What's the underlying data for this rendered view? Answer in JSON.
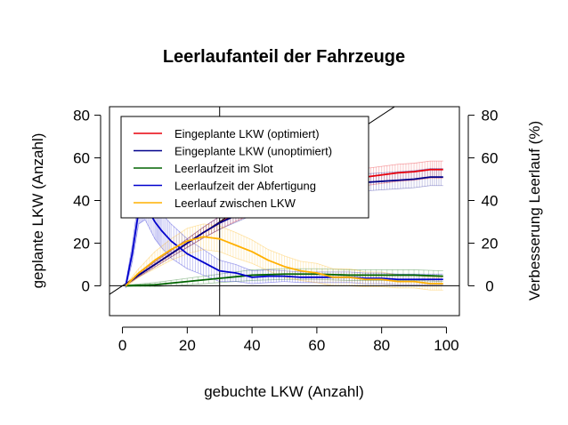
{
  "chart_data": {
    "type": "line",
    "title": "Leerlaufanteil der Fahrzeuge",
    "xlabel": "gebuchte LKW (Anzahl)",
    "ylabel": "geplante LKW (Anzahl)",
    "y2label": "Verbesserung Leerlauf (%)",
    "xlim": [
      -4,
      104
    ],
    "ylim": [
      -14,
      84
    ],
    "xticks": [
      0,
      20,
      40,
      60,
      80,
      100
    ],
    "yticks": [
      0,
      20,
      40,
      60,
      80
    ],
    "y2ticks": [
      0,
      20,
      40,
      60,
      80
    ],
    "legend_position": "top-left",
    "reference_lines": {
      "vertical_x": 30,
      "horizontal_y": 0,
      "diagonal": "y = x"
    },
    "series": [
      {
        "name": "Eingeplante LKW (optimiert)",
        "color": "#e8000b",
        "x": [
          1,
          5,
          10,
          15,
          20,
          25,
          30,
          35,
          40,
          45,
          50,
          55,
          60,
          65,
          70,
          75,
          80,
          85,
          90,
          95,
          99
        ],
        "y": [
          0.5,
          5,
          10,
          15,
          20,
          25,
          29.5,
          33.5,
          37,
          40,
          42.5,
          44.5,
          46,
          47.5,
          49.5,
          51,
          52,
          53,
          53.5,
          54.5,
          54.5
        ],
        "err": [
          0.3,
          0.8,
          1.2,
          1.5,
          2,
          2.5,
          3,
          3.2,
          3.5,
          3.7,
          3.8,
          3.9,
          4,
          4,
          4,
          4,
          4,
          4,
          4,
          4,
          4
        ]
      },
      {
        "name": "Eingeplante LKW (unoptimiert)",
        "color": "#00008b",
        "x": [
          1,
          5,
          10,
          15,
          20,
          25,
          30,
          35,
          40,
          45,
          50,
          55,
          60,
          65,
          70,
          75,
          80,
          85,
          90,
          95,
          99
        ],
        "y": [
          0.5,
          5,
          10,
          15,
          20,
          25,
          29.5,
          33,
          36.5,
          39,
          41.5,
          43.5,
          45,
          46,
          47.5,
          48.5,
          49,
          49.5,
          50,
          51,
          51
        ],
        "err": [
          0.3,
          0.8,
          1.2,
          1.5,
          2,
          2.5,
          3,
          3.2,
          3.5,
          3.7,
          3.8,
          3.9,
          4,
          4,
          4,
          4,
          4,
          4,
          4,
          4,
          4
        ]
      },
      {
        "name": "Leerlaufzeit im Slot",
        "color": "#006400",
        "x": [
          1,
          10,
          20,
          30,
          40,
          50,
          60,
          70,
          80,
          90,
          99
        ],
        "y": [
          0,
          0.5,
          2,
          3.5,
          5,
          5.5,
          5.5,
          5,
          5,
          5,
          4.5
        ],
        "err": [
          0.3,
          1,
          1.5,
          2,
          2.5,
          2.5,
          2.5,
          2.5,
          2.5,
          2.5,
          2.5
        ]
      },
      {
        "name": "Leerlaufzeit der Abfertigung",
        "color": "#0000cd",
        "x": [
          1,
          3,
          5,
          7,
          10,
          12,
          15,
          20,
          25,
          30,
          35,
          40,
          45,
          50,
          55,
          60,
          65,
          70,
          75,
          80,
          85,
          90,
          95,
          99
        ],
        "y": [
          0,
          15,
          35,
          38,
          30,
          26,
          21,
          15,
          11,
          7,
          6,
          4,
          4.5,
          4.5,
          4,
          4,
          4,
          4,
          3.5,
          3.5,
          3,
          3,
          3,
          3
        ],
        "err": [
          1,
          4,
          6,
          7,
          8,
          8,
          8,
          7,
          6,
          5,
          4,
          3,
          3,
          2.5,
          2.5,
          2.5,
          2.5,
          2.5,
          2.5,
          2.5,
          2.5,
          2.5,
          2.5,
          2.5
        ]
      },
      {
        "name": "Leerlauf zwischen LKW",
        "color": "#ffb000",
        "x": [
          1,
          5,
          10,
          15,
          20,
          25,
          30,
          35,
          40,
          45,
          50,
          55,
          60,
          65,
          70,
          75,
          80,
          85,
          90,
          95,
          99
        ],
        "y": [
          0,
          6,
          12,
          17,
          21,
          23,
          22,
          19,
          16,
          12,
          9,
          7,
          6,
          4,
          4,
          3,
          3,
          2,
          2,
          1,
          1
        ],
        "err": [
          0.5,
          2,
          4,
          5,
          6,
          6,
          6,
          6,
          5.5,
          5,
          5,
          4.5,
          4.5,
          4,
          4,
          3.5,
          3.5,
          3,
          3,
          3,
          3
        ]
      }
    ]
  }
}
